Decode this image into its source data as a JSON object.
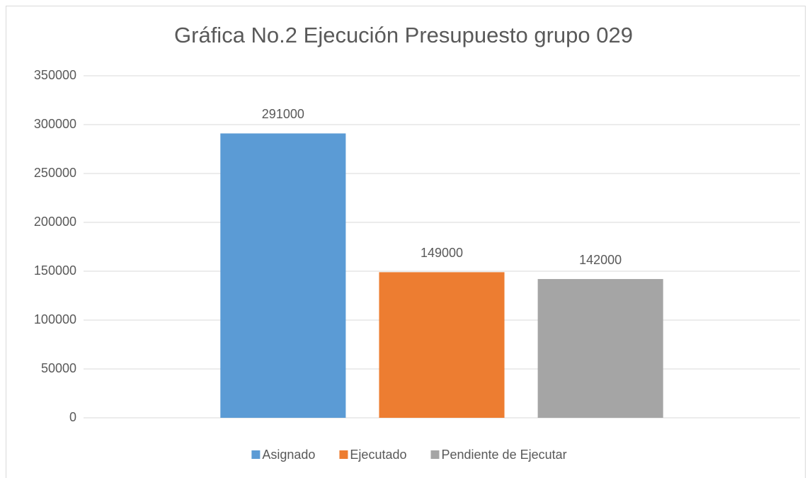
{
  "chart_data": {
    "type": "bar",
    "title": "Gráfica No.2 Ejecución Presupuesto grupo 029",
    "categories": [
      null
    ],
    "series": [
      {
        "name": "Asignado",
        "color": "#5b9bd5",
        "values": [
          291000
        ]
      },
      {
        "name": "Ejecutado",
        "color": "#ed7d31",
        "values": [
          149000
        ]
      },
      {
        "name": "Pendiente de Ejecutar",
        "color": "#a5a5a5",
        "values": [
          142000
        ]
      }
    ],
    "ylim": [
      0,
      350000
    ],
    "yticks": [
      0,
      50000,
      100000,
      150000,
      200000,
      250000,
      300000,
      350000
    ],
    "grid": true,
    "legend": "bottom",
    "data_labels": true
  }
}
